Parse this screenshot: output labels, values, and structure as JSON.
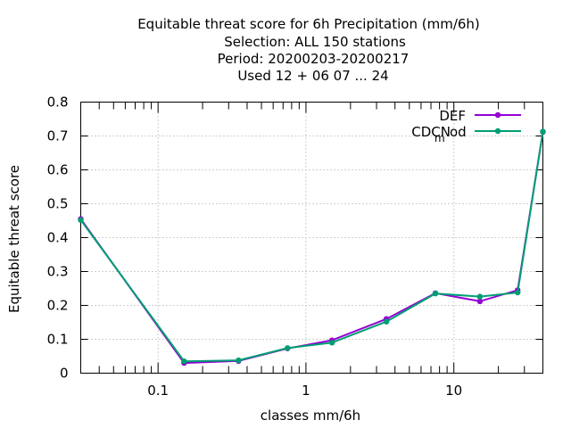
{
  "chart_data": {
    "type": "line",
    "title_lines": [
      "Equitable threat score  for 6h Precipitation (mm/6h)",
      "Selection: ALL    150 stations",
      "Period: 20200203-20200217",
      "Used  12 + 06 07 ... 24"
    ],
    "xlabel": "classes mm/6h",
    "ylabel": "Equitable threat score",
    "xscale": "log",
    "xlim": [
      0.03,
      40
    ],
    "ylim": [
      0,
      0.8
    ],
    "yticks": [
      "0",
      "0.1",
      "0.2",
      "0.3",
      "0.4",
      "0.5",
      "0.6",
      "0.7",
      "0.8"
    ],
    "xticks": [
      {
        "value": 0.1,
        "label": "0.1"
      },
      {
        "value": 1,
        "label": "1"
      },
      {
        "value": 10,
        "label": "10"
      }
    ],
    "grid": true,
    "legend_position": "top-right",
    "x": [
      0.03,
      0.15,
      0.35,
      0.75,
      1.5,
      3.5,
      7.5,
      15,
      27,
      40
    ],
    "series": [
      {
        "name": "DEF",
        "color": "#9400d3",
        "values": [
          0.455,
          0.03,
          0.036,
          0.073,
          0.097,
          0.16,
          0.236,
          0.212,
          0.245,
          0.712
        ]
      },
      {
        "name": "CDCN_mod",
        "color": "#009e73",
        "values": [
          0.452,
          0.035,
          0.038,
          0.074,
          0.09,
          0.152,
          0.235,
          0.226,
          0.238,
          0.713
        ]
      }
    ],
    "legend_labels": {
      "def": "DEF",
      "cdcn_base": "CDCN",
      "cdcn_sub": "m",
      "cdcn_rest": "od"
    }
  }
}
